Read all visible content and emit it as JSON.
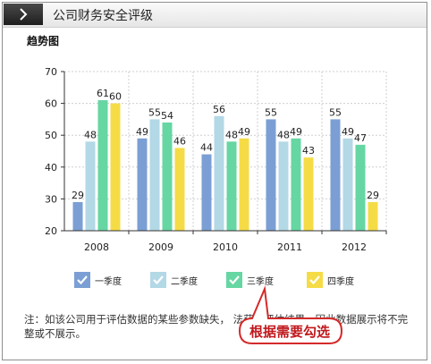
{
  "window": {
    "title": "公司财务安全评级",
    "arrow_icon": "chevron-right-icon"
  },
  "chart_data": {
    "type": "bar",
    "title": "趋势图",
    "categories": [
      "2008",
      "2009",
      "2010",
      "2011",
      "2012"
    ],
    "series": [
      {
        "name": "一季度",
        "color": "#7b9fd4",
        "values": [
          29,
          49,
          44,
          55,
          55
        ]
      },
      {
        "name": "二季度",
        "color": "#b3d8e6",
        "values": [
          48,
          55,
          56,
          48,
          49
        ]
      },
      {
        "name": "三季度",
        "color": "#66d6a3",
        "values": [
          61,
          54,
          48,
          49,
          47
        ]
      },
      {
        "name": "四季度",
        "color": "#f5dc46",
        "values": [
          60,
          46,
          49,
          43,
          29
        ]
      }
    ],
    "yticks": [
      "20",
      "30",
      "40",
      "50",
      "60",
      "70"
    ],
    "ylim": [
      20,
      70
    ],
    "grid": true,
    "legend_position": "bottom",
    "legend_check_icon": "checkmark-icon"
  },
  "note": {
    "text": "注：如该公司用于评估数据的某些参数缺失，                                      法获得评估结果，因此数据展示将不完整或不展示。"
  },
  "callout": {
    "text": "根据需要勾选",
    "border_color": "#d42a2a"
  }
}
